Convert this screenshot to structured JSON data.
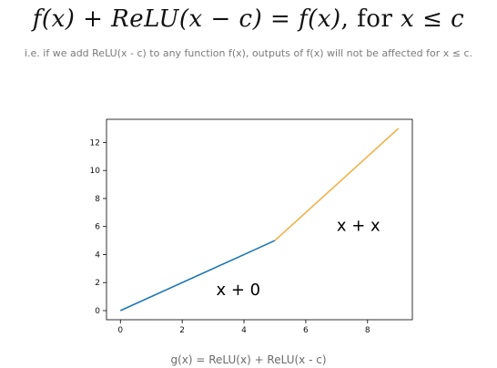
{
  "header": {
    "equation": {
      "lhs": "f(x) + ReLU(x − c)",
      "equals": " = ",
      "rhs": "f(x)",
      "for_word": ", for ",
      "condition": "x ≤ c"
    },
    "caption": "i.e. if we add ReLU(x - c) to any function f(x), outputs of f(x) will not be affected for x ≤ c."
  },
  "chart_data": {
    "type": "line",
    "title": "",
    "xlabel": "",
    "ylabel": "",
    "xlim": [
      -0.45,
      9.45
    ],
    "ylim": [
      -0.65,
      13.65
    ],
    "xticks": [
      0,
      2,
      4,
      6,
      8
    ],
    "yticks": [
      0,
      2,
      4,
      6,
      8,
      10,
      12
    ],
    "grid": false,
    "series": [
      {
        "color": "#1f77b4",
        "x": [
          0,
          5
        ],
        "y": [
          0,
          5
        ]
      },
      {
        "color": "#f0b24c",
        "x": [
          5,
          9
        ],
        "y": [
          5,
          13
        ]
      }
    ],
    "annotations": [
      {
        "text": "x + 0",
        "x": 3.1,
        "y": 1.1
      },
      {
        "text": "x + x",
        "x": 7.0,
        "y": 5.7
      }
    ]
  },
  "footer": {
    "caption": "g(x) = ReLU(x) + ReLU(x - c)"
  }
}
